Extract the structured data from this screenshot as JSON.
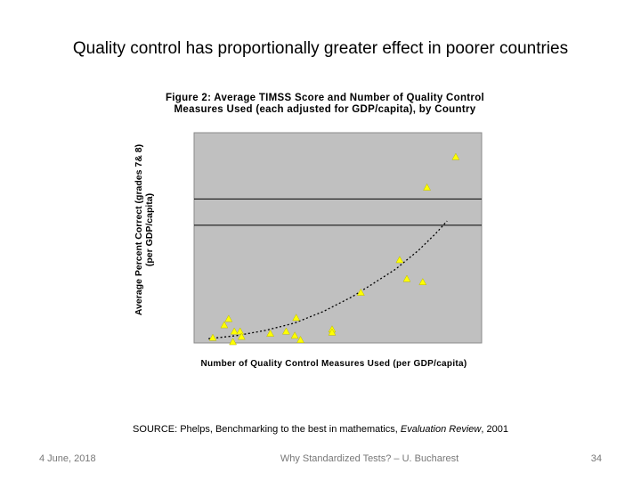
{
  "slide": {
    "title": "Quality control has proportionally greater effect in poorer countries",
    "source_prefix": "SOURCE: Phelps, Benchmarking to the best in mathematics, ",
    "source_journal": "Evaluation Review",
    "source_suffix": ", 2001"
  },
  "footer": {
    "date": "4 June, 2018",
    "center": "Why Standardized Tests? – U. Bucharest",
    "page": "34"
  },
  "chart_data": {
    "type": "scatter",
    "title": "Figure 2: Average TIMSS Score and Number of Quality Control Measures Used (each adjusted for GDP/capita), by Country",
    "title_line1": "Figure 2: Average TIMSS Score and Number of Quality Control",
    "title_line2": "Measures Used (each adjusted for GDP/capita), by Country",
    "xlabel": "Number of Quality Control Measures Used (per GDP/capita)",
    "ylabel_line1": "Average Percent Correct (grades 7& 8)",
    "ylabel_line2": "(per GDP/capita)",
    "xlim": [
      0,
      100
    ],
    "ylim": [
      0,
      100
    ],
    "grid": false,
    "tick_labels": false,
    "plot_background": "#c0c0c0",
    "marker_color": "#ffff00",
    "reference_lines_y": [
      68.5,
      56
    ],
    "points": [
      {
        "x": 6.5,
        "y": 2.5
      },
      {
        "x": 10.5,
        "y": 8.5
      },
      {
        "x": 12.0,
        "y": 11.5
      },
      {
        "x": 13.5,
        "y": 0.5
      },
      {
        "x": 14.0,
        "y": 5.5
      },
      {
        "x": 16.0,
        "y": 5.5
      },
      {
        "x": 16.5,
        "y": 3.0
      },
      {
        "x": 26.5,
        "y": 4.5
      },
      {
        "x": 32.0,
        "y": 5.5
      },
      {
        "x": 35.0,
        "y": 3.5
      },
      {
        "x": 35.5,
        "y": 12.0
      },
      {
        "x": 37.0,
        "y": 1.5
      },
      {
        "x": 48.0,
        "y": 6.5
      },
      {
        "x": 48.0,
        "y": 5.0
      },
      {
        "x": 58.0,
        "y": 24.0
      },
      {
        "x": 71.5,
        "y": 39.5
      },
      {
        "x": 74.0,
        "y": 30.5
      },
      {
        "x": 79.5,
        "y": 29.0
      },
      {
        "x": 81.0,
        "y": 74.0
      },
      {
        "x": 91.0,
        "y": 88.5
      }
    ],
    "trendline": {
      "style": "dotted",
      "x": [
        5,
        15,
        25,
        35,
        45,
        55,
        62,
        70,
        78,
        84,
        88
      ],
      "y": [
        2,
        3.5,
        6,
        9.5,
        15,
        22,
        28,
        35,
        44,
        52,
        58
      ]
    }
  }
}
